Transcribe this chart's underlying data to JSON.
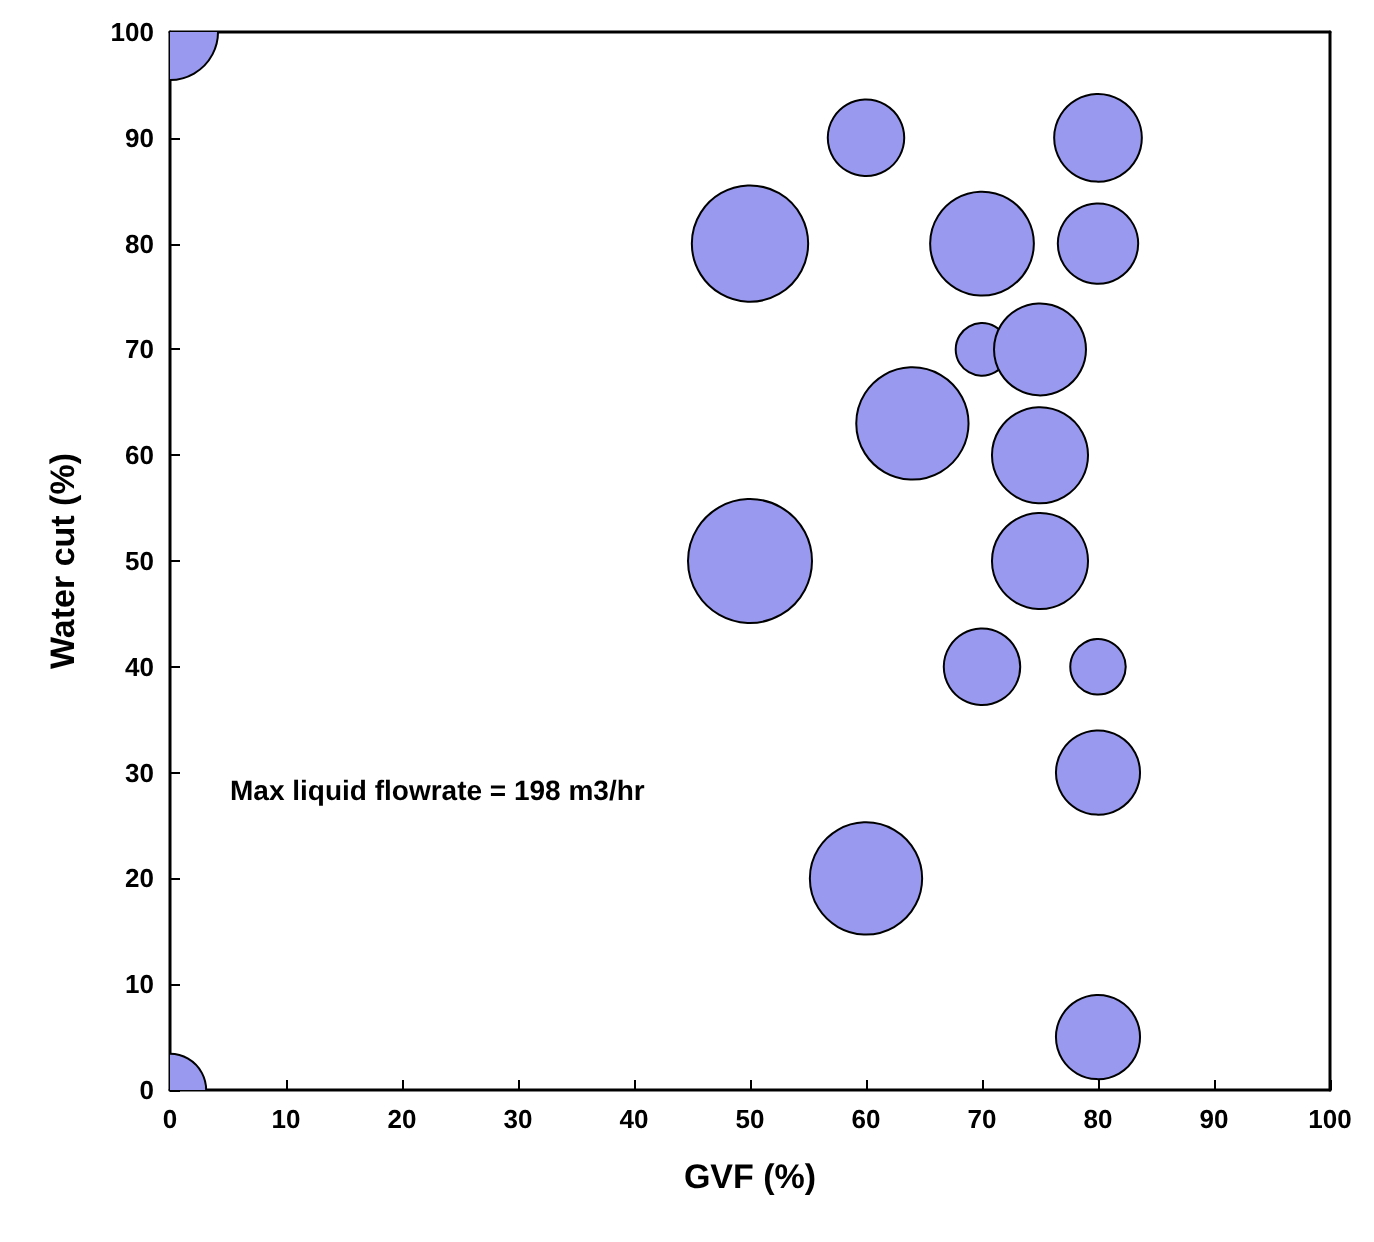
{
  "chart_data": {
    "type": "bubble",
    "xlabel": "GVF (%)",
    "ylabel": "Water cut (%)",
    "annotations": [
      "Max liquid flowrate = 198 m3/hr"
    ],
    "xlim": [
      0,
      100
    ],
    "ylim": [
      0,
      100
    ],
    "xticks": [
      0,
      10,
      20,
      30,
      40,
      50,
      60,
      70,
      80,
      90,
      100
    ],
    "yticks": [
      0,
      10,
      20,
      30,
      40,
      50,
      60,
      70,
      80,
      90,
      100
    ],
    "grid": false,
    "series": [
      {
        "color": "#9999f0",
        "x": [
          0,
          0,
          60,
          80,
          50,
          70,
          80,
          70,
          75,
          64,
          75,
          50,
          75,
          70,
          80,
          80,
          60,
          80
        ],
        "values": [
          100,
          0,
          90,
          90,
          80,
          80,
          80,
          70,
          70,
          63,
          60,
          50,
          50,
          40,
          40,
          30,
          20,
          5
        ],
        "sizes": [
          0.6,
          0.34,
          0.38,
          0.5,
          0.88,
          0.7,
          0.42,
          0.18,
          0.55,
          0.82,
          0.6,
          1,
          0.6,
          0.38,
          0.2,
          0.46,
          0.82,
          0.46
        ]
      }
    ]
  }
}
